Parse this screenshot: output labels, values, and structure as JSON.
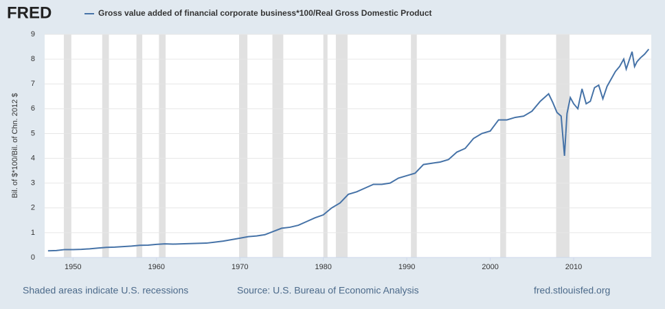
{
  "logo": "FRED",
  "chart_data": {
    "type": "line",
    "series": [
      {
        "name": "Gross value added of financial corporate business*100/Real Gross Domestic Product",
        "color": "#4572a7",
        "x": [
          1947,
          1948,
          1949,
          1950,
          1951,
          1952,
          1953,
          1954,
          1955,
          1956,
          1957,
          1958,
          1959,
          1960,
          1961,
          1962,
          1963,
          1964,
          1965,
          1966,
          1967,
          1968,
          1969,
          1970,
          1971,
          1972,
          1973,
          1974,
          1975,
          1976,
          1977,
          1978,
          1979,
          1980,
          1981,
          1982,
          1983,
          1984,
          1985,
          1986,
          1987,
          1988,
          1989,
          1990,
          1991,
          1992,
          1993,
          1994,
          1995,
          1996,
          1997,
          1998,
          1999,
          2000,
          2001,
          2002,
          2003,
          2004,
          2005,
          2006,
          2007,
          2007.5,
          2008,
          2008.5,
          2008.9,
          2009.2,
          2009.6,
          2010,
          2010.5,
          2011,
          2011.5,
          2012,
          2012.5,
          2013,
          2013.5,
          2014,
          2014.5,
          2015,
          2015.5,
          2016,
          2016.3,
          2016.6,
          2017,
          2017.3,
          2017.6,
          2018,
          2018.5,
          2019
        ],
        "values": [
          0.27,
          0.28,
          0.32,
          0.32,
          0.33,
          0.35,
          0.38,
          0.41,
          0.42,
          0.44,
          0.46,
          0.49,
          0.5,
          0.53,
          0.55,
          0.54,
          0.55,
          0.56,
          0.57,
          0.58,
          0.62,
          0.66,
          0.72,
          0.78,
          0.84,
          0.87,
          0.92,
          1.05,
          1.18,
          1.22,
          1.3,
          1.45,
          1.6,
          1.72,
          2.0,
          2.2,
          2.55,
          2.65,
          2.8,
          2.95,
          2.95,
          3.0,
          3.2,
          3.3,
          3.4,
          3.75,
          3.8,
          3.85,
          3.95,
          4.25,
          4.4,
          4.8,
          5.0,
          5.1,
          5.55,
          5.55,
          5.65,
          5.7,
          5.9,
          6.3,
          6.6,
          6.25,
          5.85,
          5.7,
          4.1,
          5.8,
          6.45,
          6.2,
          6.0,
          6.8,
          6.2,
          6.3,
          6.85,
          6.95,
          6.4,
          6.9,
          7.2,
          7.5,
          7.7,
          8.0,
          7.6,
          7.9,
          8.3,
          7.7,
          7.9,
          8.05,
          8.2,
          8.4
        ]
      }
    ],
    "recessions": [
      [
        1948.9,
        1949.8
      ],
      [
        1953.5,
        1954.3
      ],
      [
        1957.6,
        1958.3
      ],
      [
        1960.3,
        1961.1
      ],
      [
        1969.9,
        1970.9
      ],
      [
        1973.9,
        1975.2
      ],
      [
        1980.0,
        1980.5
      ],
      [
        1981.5,
        1982.9
      ],
      [
        1990.5,
        1991.2
      ],
      [
        2001.2,
        2001.9
      ],
      [
        2007.9,
        2009.5
      ]
    ],
    "ylabel": "Bil. of $*100/Bil. of Chn. 2012 $",
    "xlim": [
      1946.6,
      2019.3
    ],
    "ylim": [
      0,
      9
    ],
    "xticks": [
      1950,
      1960,
      1970,
      1980,
      1990,
      2000,
      2010
    ],
    "yticks": [
      0,
      1,
      2,
      3,
      4,
      5,
      6,
      7,
      8,
      9
    ],
    "grid": true,
    "recession_note": "Shaded areas indicate U.S. recessions",
    "source": "Source: U.S. Bureau of Economic Analysis",
    "site": "fred.stlouisfed.org"
  }
}
